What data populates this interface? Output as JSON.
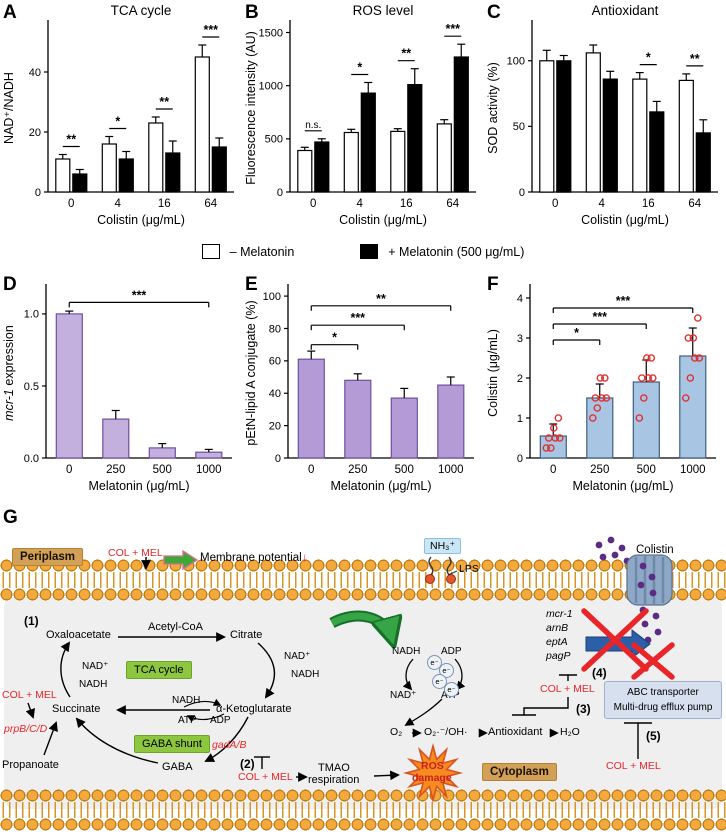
{
  "legend": {
    "minus_label": "– Melatonin",
    "plus_label": "+ Melatonin (500 μg/mL)"
  },
  "chart_data": [
    {
      "id": "A",
      "panel_letter": "A",
      "type": "bar",
      "title": "TCA cycle",
      "xlabel": "Colistin (μg/mL)",
      "ylabel": "NAD⁺/NADH",
      "categories": [
        "0",
        "4",
        "16",
        "64"
      ],
      "series": [
        {
          "name": "– Melatonin",
          "fill": "#ffffff",
          "stroke": "#000000",
          "values": [
            11,
            16,
            23,
            45
          ],
          "errors": [
            1.5,
            2.5,
            2,
            4
          ]
        },
        {
          "name": "+ Melatonin (500 μg/mL)",
          "fill": "#000000",
          "stroke": "#000000",
          "values": [
            6,
            11,
            13,
            15
          ],
          "errors": [
            1.5,
            2.5,
            4,
            3
          ]
        }
      ],
      "ylim": [
        0,
        56
      ],
      "yticks": [
        0,
        20,
        40
      ],
      "ytick_labels": [
        "0",
        "20",
        "40"
      ],
      "sig_groups": [
        "**",
        "*",
        "**",
        "***"
      ]
    },
    {
      "id": "B",
      "panel_letter": "B",
      "type": "bar",
      "title": "ROS level",
      "xlabel": "Colistin (μg/mL)",
      "ylabel": "Fluorescence intensity (AU)",
      "categories": [
        "0",
        "4",
        "16",
        "64"
      ],
      "series": [
        {
          "name": "– Melatonin",
          "fill": "#ffffff",
          "stroke": "#000000",
          "values": [
            390,
            560,
            570,
            640
          ],
          "errors": [
            30,
            30,
            25,
            40
          ]
        },
        {
          "name": "+ Melatonin (500 μg/mL)",
          "fill": "#000000",
          "stroke": "#000000",
          "values": [
            470,
            930,
            1010,
            1270
          ],
          "errors": [
            30,
            100,
            150,
            120
          ]
        }
      ],
      "ylim": [
        0,
        1580
      ],
      "yticks": [
        0,
        500,
        1000,
        1500
      ],
      "ytick_labels": [
        "0",
        "500",
        "1000",
        "1500"
      ],
      "sig_groups": [
        "n.s.",
        "*",
        "**",
        "***"
      ]
    },
    {
      "id": "C",
      "panel_letter": "C",
      "type": "bar",
      "title": "Antioxidant",
      "xlabel": "Colistin (μg/mL)",
      "ylabel": "SOD activity (%)",
      "categories": [
        "0",
        "4",
        "16",
        "64"
      ],
      "series": [
        {
          "name": "– Melatonin",
          "fill": "#ffffff",
          "stroke": "#000000",
          "values": [
            100,
            106,
            86,
            85
          ],
          "errors": [
            8,
            6,
            5,
            5
          ]
        },
        {
          "name": "+ Melatonin (500 μg/mL)",
          "fill": "#000000",
          "stroke": "#000000",
          "values": [
            100,
            86,
            61,
            45
          ],
          "errors": [
            4,
            6,
            8,
            10
          ]
        }
      ],
      "ylim": [
        0,
        128
      ],
      "yticks": [
        0,
        50,
        100
      ],
      "ytick_labels": [
        "0",
        "50",
        "100"
      ],
      "sig_groups": [
        "",
        "",
        "*",
        "**"
      ]
    },
    {
      "id": "D",
      "panel_letter": "D",
      "type": "bar",
      "title": "",
      "xlabel": "Melatonin (μg/mL)",
      "ylabel_parts": [
        {
          "text": "mcr-1",
          "italic": true
        },
        {
          "text": " expression",
          "italic": false
        }
      ],
      "categories": [
        "0",
        "250",
        "500",
        "1000"
      ],
      "series": [
        {
          "fill": "#c3b0de",
          "stroke": "#6f4f9e",
          "values": [
            1.0,
            0.27,
            0.07,
            0.04
          ],
          "errors": [
            0.02,
            0.06,
            0.03,
            0.02
          ]
        }
      ],
      "ylim": [
        0,
        1.18
      ],
      "yticks": [
        0,
        0.5,
        1.0
      ],
      "ytick_labels": [
        "0.0",
        "0.5",
        "1.0"
      ],
      "sig_pairs": [
        {
          "from": 0,
          "to": 3,
          "label": "***",
          "y": 1.08
        }
      ]
    },
    {
      "id": "E",
      "panel_letter": "E",
      "type": "bar",
      "title": "",
      "xlabel": "Melatonin (μg/mL)",
      "ylabel": "pEtN-lipid A conjugate (%)",
      "categories": [
        "0",
        "250",
        "500",
        "1000"
      ],
      "series": [
        {
          "fill": "#b49bd6",
          "stroke": "#6f4f9e",
          "values": [
            61,
            48,
            37,
            45
          ],
          "errors": [
            5,
            4,
            6,
            5
          ]
        }
      ],
      "ylim": [
        0,
        105
      ],
      "yticks": [
        0,
        20,
        40,
        60,
        80,
        100
      ],
      "ytick_labels": [
        "0",
        "20",
        "40",
        "60",
        "80",
        "100"
      ],
      "sig_pairs": [
        {
          "from": 0,
          "to": 1,
          "label": "*",
          "y": 70
        },
        {
          "from": 0,
          "to": 2,
          "label": "***",
          "y": 82
        },
        {
          "from": 0,
          "to": 3,
          "label": "**",
          "y": 94
        }
      ]
    },
    {
      "id": "F",
      "panel_letter": "F",
      "type": "bar",
      "title": "",
      "xlabel": "Melatonin (μg/mL)",
      "ylabel": "Colistin (μg/mL)",
      "categories": [
        "0",
        "250",
        "500",
        "1000"
      ],
      "series": [
        {
          "fill": "#a9c5e4",
          "stroke": "#3f5d7d",
          "values": [
            0.55,
            1.5,
            1.9,
            2.55
          ],
          "errors": [
            0.3,
            0.35,
            0.55,
            0.7
          ]
        }
      ],
      "points": [
        [
          0.25,
          0.25,
          0.5,
          0.5,
          0.5,
          0.75,
          1
        ],
        [
          1,
          1.25,
          1.5,
          1.5,
          1.5,
          2,
          2
        ],
        [
          1,
          1.5,
          2,
          2,
          2,
          2.5,
          2.5
        ],
        [
          1.5,
          2,
          2.5,
          2.5,
          3,
          3,
          3.5
        ]
      ],
      "point_color": "#e0312e",
      "ylim": [
        0,
        4.25
      ],
      "yticks": [
        0,
        1,
        2,
        3,
        4
      ],
      "ytick_labels": [
        "0",
        "1",
        "2",
        "3",
        "4"
      ],
      "sig_pairs": [
        {
          "from": 0,
          "to": 1,
          "label": "*",
          "y": 2.95
        },
        {
          "from": 0,
          "to": 2,
          "label": "***",
          "y": 3.35
        },
        {
          "from": 0,
          "to": 3,
          "label": "***",
          "y": 3.75
        }
      ]
    }
  ],
  "diagram": {
    "panel_letter": "G",
    "periplasm": "Periplasm",
    "cytoplasm": "Cytoplasm",
    "col_mel": "COL + MEL",
    "membrane_potential": "Membrane potential",
    "down_arrow": "↓",
    "nh3": "NH₃⁺",
    "lps": "LPS",
    "colistin": "Colistin",
    "steps": {
      "s1": "(1)",
      "s2": "(2)",
      "s3": "(3)",
      "s4": "(4)",
      "s5": "(5)"
    },
    "tca": {
      "oxaloacetate": "Oxaloacetate",
      "acetyl_coa": "Acetyl-CoA",
      "citrate": "Citrate",
      "akg": "α-Ketoglutarate",
      "succinate": "Succinate",
      "tca_cycle": "TCA cycle",
      "gaba_shunt": "GABA shunt",
      "gaba": "GABA",
      "propanoate": "Propanoate",
      "nad": "NAD⁺",
      "nadh": "NADH",
      "atp": "ATP",
      "adp": "ADP"
    },
    "genes": {
      "prpb": "prpB/C/D",
      "gada": "gadA/B",
      "mcr1": "mcr-1",
      "arnb": "arnB",
      "epta": "eptA",
      "pagp": "pagP"
    },
    "etc": {
      "e": "e⁻",
      "o2": "O₂",
      "ros_species": "O₂·⁻/OH·",
      "antioxidant": "Antioxidant",
      "h2o": "H₂O"
    },
    "tmao_line1": "TMAO",
    "tmao_line2": "respiration",
    "ros_line1": "ROS",
    "ros_line2": "damage",
    "abc_line1": "ABC transporter",
    "abc_line2": "Multi-drug efflux pump"
  },
  "colors": {
    "accent_red": "#e8262a",
    "colistin_purple": "#5b2c83",
    "green_box": "#8dc63f",
    "tan_box": "#d2a156"
  }
}
